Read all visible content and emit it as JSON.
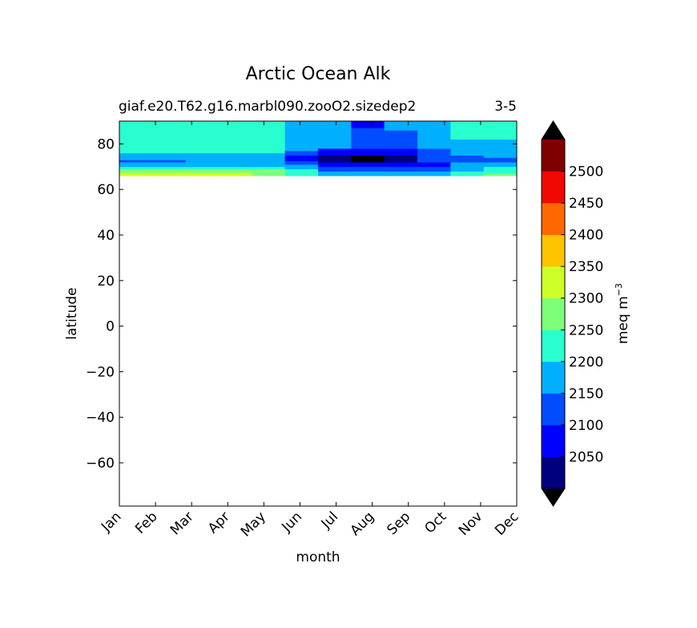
{
  "chart_data": {
    "type": "heatmap",
    "title": "Arctic Ocean Alk",
    "subtitle_left": "giaf.e20.T62.g16.marbl090.zooO2.sizedep2",
    "subtitle_right": "3-5",
    "xlabel": "month",
    "ylabel": "latitude",
    "x_categories": [
      "Jan",
      "Feb",
      "Mar",
      "Apr",
      "May",
      "Jun",
      "Jul",
      "Aug",
      "Sep",
      "Oct",
      "Nov",
      "Dec"
    ],
    "y_ticks": [
      "80",
      "60",
      "40",
      "20",
      "0",
      "−20",
      "−40",
      "−60"
    ],
    "y_tick_values": [
      80,
      60,
      40,
      20,
      0,
      -20,
      -40,
      -60
    ],
    "ylim": [
      -79,
      90
    ],
    "data_lat_range": [
      66,
      90
    ],
    "colorbar": {
      "label": "meq m",
      "label_exp": "−3",
      "ticks": [
        "2050",
        "2100",
        "2150",
        "2200",
        "2250",
        "2300",
        "2350",
        "2400",
        "2450",
        "2500"
      ],
      "levels": [
        2000,
        2050,
        2100,
        2150,
        2200,
        2250,
        2300,
        2350,
        2400,
        2450,
        2500,
        2550
      ],
      "colors": [
        "#00007f",
        "#0000ff",
        "#004cff",
        "#00b0ff",
        "#29ffce",
        "#7dff7a",
        "#ceff29",
        "#ffc400",
        "#ff6800",
        "#f10800",
        "#7f0000"
      ],
      "extend_colors": {
        "under": "#000000",
        "over": "#000000"
      }
    },
    "bands_by_month": [
      {
        "month": "Jan",
        "bands": [
          [
            66,
            67.5,
            2300
          ],
          [
            67.5,
            69,
            2250
          ],
          [
            69,
            70,
            2200
          ],
          [
            70,
            72,
            2150
          ],
          [
            72,
            73,
            2100
          ],
          [
            73,
            76,
            2150
          ],
          [
            76,
            90,
            2200
          ]
        ]
      },
      {
        "month": "Feb",
        "bands": [
          [
            66,
            67.5,
            2300
          ],
          [
            67.5,
            69,
            2250
          ],
          [
            69,
            70,
            2200
          ],
          [
            70,
            72,
            2150
          ],
          [
            72,
            73,
            2100
          ],
          [
            73,
            76,
            2150
          ],
          [
            76,
            90,
            2200
          ]
        ]
      },
      {
        "month": "Mar",
        "bands": [
          [
            66,
            67.5,
            2300
          ],
          [
            67.5,
            69,
            2250
          ],
          [
            69,
            70,
            2200
          ],
          [
            70,
            72,
            2150
          ],
          [
            72,
            76,
            2150
          ],
          [
            76,
            90,
            2200
          ]
        ]
      },
      {
        "month": "Apr",
        "bands": [
          [
            66,
            67.5,
            2300
          ],
          [
            67.5,
            69,
            2250
          ],
          [
            69,
            70,
            2200
          ],
          [
            70,
            72,
            2150
          ],
          [
            72,
            76,
            2150
          ],
          [
            76,
            90,
            2200
          ]
        ]
      },
      {
        "month": "May",
        "bands": [
          [
            66,
            67.5,
            2250
          ],
          [
            67.5,
            69,
            2250
          ],
          [
            69,
            70,
            2200
          ],
          [
            70,
            72,
            2150
          ],
          [
            72,
            76,
            2150
          ],
          [
            76,
            90,
            2200
          ]
        ]
      },
      {
        "month": "Jun",
        "bands": [
          [
            66,
            69,
            2200
          ],
          [
            69,
            71,
            2150
          ],
          [
            71,
            72.5,
            2100
          ],
          [
            72.5,
            75,
            2050
          ],
          [
            75,
            77,
            2100
          ],
          [
            77,
            90,
            2150
          ]
        ]
      },
      {
        "month": "Jul",
        "bands": [
          [
            66,
            68,
            2150
          ],
          [
            68,
            70,
            2100
          ],
          [
            70,
            72,
            2050
          ],
          [
            72,
            75,
            2000
          ],
          [
            75,
            78,
            2050
          ],
          [
            78,
            90,
            2150
          ]
        ]
      },
      {
        "month": "Aug",
        "bands": [
          [
            66,
            68,
            2150
          ],
          [
            68,
            70,
            2100
          ],
          [
            70,
            72,
            2050
          ],
          [
            72,
            75,
            1990
          ],
          [
            75,
            78,
            2050
          ],
          [
            78,
            87,
            2100
          ],
          [
            87,
            90,
            2050
          ]
        ]
      },
      {
        "month": "Sep",
        "bands": [
          [
            66,
            68,
            2150
          ],
          [
            68,
            70,
            2100
          ],
          [
            70,
            72,
            2050
          ],
          [
            72,
            75,
            2000
          ],
          [
            75,
            78,
            2050
          ],
          [
            78,
            86,
            2100
          ],
          [
            86,
            90,
            2150
          ]
        ]
      },
      {
        "month": "Oct",
        "bands": [
          [
            66,
            68,
            2150
          ],
          [
            68,
            70,
            2100
          ],
          [
            70,
            72,
            2050
          ],
          [
            72,
            75,
            2100
          ],
          [
            75,
            78,
            2100
          ],
          [
            78,
            90,
            2150
          ]
        ]
      },
      {
        "month": "Nov",
        "bands": [
          [
            66,
            68,
            2200
          ],
          [
            68,
            70,
            2150
          ],
          [
            70,
            72,
            2150
          ],
          [
            72,
            75,
            2100
          ],
          [
            75,
            77,
            2150
          ],
          [
            77,
            82,
            2150
          ],
          [
            82,
            90,
            2200
          ]
        ]
      },
      {
        "month": "Dec",
        "bands": [
          [
            66,
            67,
            2250
          ],
          [
            67,
            70,
            2200
          ],
          [
            70,
            72,
            2150
          ],
          [
            72,
            74,
            2100
          ],
          [
            74,
            77,
            2150
          ],
          [
            77,
            82,
            2150
          ],
          [
            82,
            90,
            2200
          ]
        ]
      }
    ],
    "grid": false,
    "legend": "colorbar-right"
  }
}
